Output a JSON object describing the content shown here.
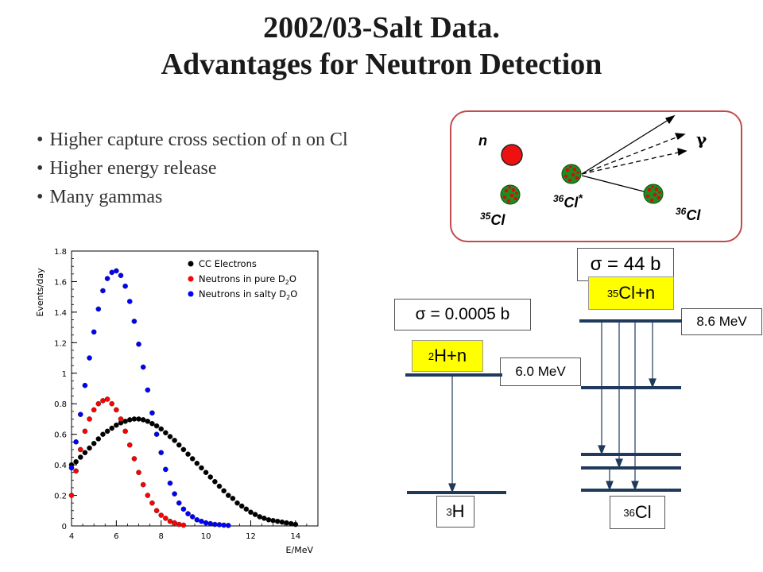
{
  "title": {
    "line1": "2002/03-Salt Data.",
    "line2": "Advantages for Neutron Detection"
  },
  "bullets": [
    "Higher capture cross section of n on Cl",
    "Higher energy release",
    "Many gammas"
  ],
  "reaction": {
    "neutron": "n",
    "gamma": "γ",
    "target_sup": "35",
    "target": "Cl",
    "compound_sup": "36",
    "compound": "Cl",
    "compound_star": "*",
    "product_sup": "36",
    "product": "Cl"
  },
  "levels": {
    "cs_h": "σ = 0.0005 b",
    "cs_cl": "σ = 44 b",
    "h_reactant_sup": "2",
    "h_reactant": "H+n",
    "cl_reactant_sup": "35",
    "cl_reactant": "Cl+n",
    "h_energy": "6.0 MeV",
    "cl_energy": "8.6 MeV",
    "h_product_sup": "3",
    "h_product": "H",
    "cl_product_sup": "36",
    "cl_product": "Cl"
  },
  "chart_data": {
    "type": "scatter",
    "xlabel": "E/MeV",
    "ylabel": "Events/day",
    "xlim": [
      4,
      15
    ],
    "ylim": [
      0,
      1.8
    ],
    "xticks": [
      "4",
      "6",
      "8",
      "10",
      "12",
      "14"
    ],
    "yticks": [
      "0",
      "0.2",
      "0.4",
      "0.6",
      "0.8",
      "1",
      "1.2",
      "1.4",
      "1.6",
      "1.8"
    ],
    "legend": [
      {
        "name": "CC Electrons",
        "color": "#000000"
      },
      {
        "name": "Neutrons in pure D",
        "sub": "2",
        "tail": "O",
        "color": "#ff0000"
      },
      {
        "name": "Neutrons in salty D",
        "sub": "2",
        "tail": "O",
        "color": "#0000ff"
      }
    ],
    "legend_position": "top-right",
    "series": [
      {
        "color": "#000000",
        "x": [
          4.0,
          4.2,
          4.4,
          4.6,
          4.8,
          5.0,
          5.2,
          5.4,
          5.6,
          5.8,
          6.0,
          6.2,
          6.4,
          6.6,
          6.8,
          7.0,
          7.2,
          7.4,
          7.6,
          7.8,
          8.0,
          8.2,
          8.4,
          8.6,
          8.8,
          9.0,
          9.2,
          9.4,
          9.6,
          9.8,
          10.0,
          10.2,
          10.4,
          10.6,
          10.8,
          11.0,
          11.2,
          11.4,
          11.6,
          11.8,
          12.0,
          12.2,
          12.4,
          12.6,
          12.8,
          13.0,
          13.2,
          13.4,
          13.6,
          13.8,
          14.0
        ],
        "y": [
          0.4,
          0.42,
          0.45,
          0.48,
          0.51,
          0.54,
          0.57,
          0.6,
          0.62,
          0.64,
          0.66,
          0.675,
          0.685,
          0.695,
          0.7,
          0.7,
          0.695,
          0.685,
          0.67,
          0.655,
          0.635,
          0.61,
          0.585,
          0.56,
          0.53,
          0.5,
          0.47,
          0.44,
          0.41,
          0.38,
          0.35,
          0.32,
          0.29,
          0.26,
          0.23,
          0.2,
          0.18,
          0.15,
          0.13,
          0.11,
          0.09,
          0.075,
          0.06,
          0.05,
          0.04,
          0.035,
          0.03,
          0.025,
          0.02,
          0.015,
          0.01
        ]
      },
      {
        "color": "#ff0000",
        "x": [
          4.0,
          4.2,
          4.4,
          4.6,
          4.8,
          5.0,
          5.2,
          5.4,
          5.6,
          5.8,
          6.0,
          6.2,
          6.4,
          6.6,
          6.8,
          7.0,
          7.2,
          7.4,
          7.6,
          7.8,
          8.0,
          8.2,
          8.4,
          8.6,
          8.8,
          9.0
        ],
        "y": [
          0.2,
          0.36,
          0.5,
          0.62,
          0.7,
          0.76,
          0.8,
          0.82,
          0.83,
          0.8,
          0.76,
          0.7,
          0.62,
          0.53,
          0.44,
          0.35,
          0.27,
          0.2,
          0.15,
          0.1,
          0.07,
          0.05,
          0.03,
          0.02,
          0.01,
          0.005
        ]
      },
      {
        "color": "#0000ff",
        "x": [
          4.0,
          4.2,
          4.4,
          4.6,
          4.8,
          5.0,
          5.2,
          5.4,
          5.6,
          5.8,
          6.0,
          6.2,
          6.4,
          6.6,
          6.8,
          7.0,
          7.2,
          7.4,
          7.6,
          7.8,
          8.0,
          8.2,
          8.4,
          8.6,
          8.8,
          9.0,
          9.2,
          9.4,
          9.6,
          9.8,
          10.0,
          10.2,
          10.4,
          10.6,
          10.8,
          11.0
        ],
        "y": [
          0.38,
          0.55,
          0.73,
          0.92,
          1.1,
          1.27,
          1.42,
          1.54,
          1.62,
          1.66,
          1.67,
          1.64,
          1.57,
          1.47,
          1.34,
          1.19,
          1.04,
          0.89,
          0.74,
          0.6,
          0.48,
          0.37,
          0.28,
          0.21,
          0.15,
          0.11,
          0.08,
          0.06,
          0.04,
          0.03,
          0.02,
          0.015,
          0.01,
          0.008,
          0.005,
          0.003
        ]
      }
    ]
  }
}
